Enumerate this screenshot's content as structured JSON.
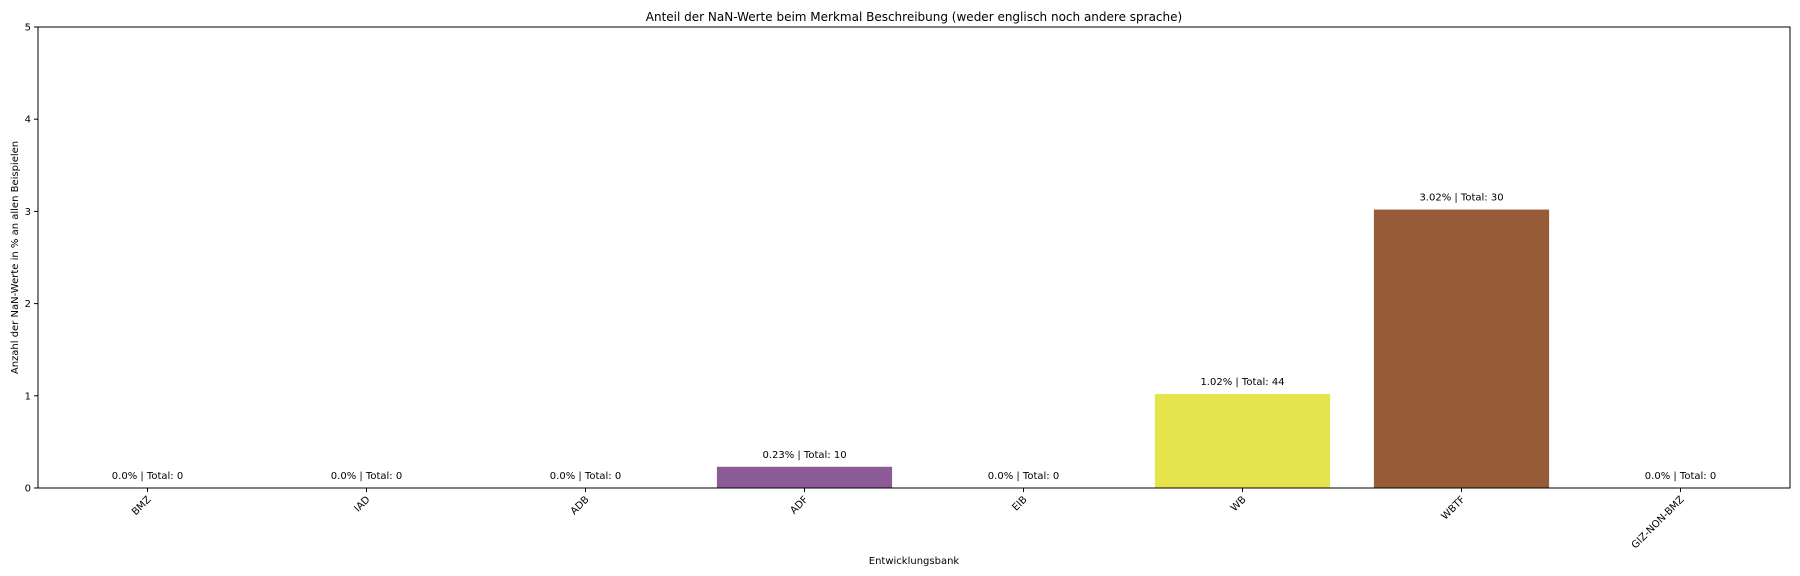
{
  "chart_data": {
    "type": "bar",
    "title": "Anteil der NaN-Werte beim Merkmal Beschreibung (weder englisch noch andere sprache)",
    "xlabel": "Entwicklungsbank",
    "ylabel": "Anzahl der NaN-Werte in % an allen Beispielen",
    "categories": [
      "BMZ",
      "IAD",
      "ADB",
      "ADF",
      "EIB",
      "WB",
      "WBTF",
      "GIZ-NON-BMZ"
    ],
    "values": [
      0.0,
      0.0,
      0.0,
      0.23,
      0.0,
      1.02,
      3.02,
      0.0
    ],
    "data_labels": [
      "0.0% | Total: 0",
      "0.0% | Total: 0",
      "0.0% | Total: 0",
      "0.23% | Total: 10",
      "0.0% | Total: 0",
      "1.02% | Total: 44",
      "3.02% | Total: 30",
      "0.0% | Total: 0"
    ],
    "colors": [
      "#1f77b4",
      "#ff7f0e",
      "#2ca02c",
      "#8c5a96",
      "#d62728",
      "#e6e44d",
      "#975b37",
      "#7f7f7f"
    ],
    "ylim": [
      0,
      5
    ],
    "yticks": [
      0,
      1,
      2,
      3,
      4,
      5
    ],
    "ytick_labels": [
      "0",
      "1",
      "2",
      "3",
      "4",
      "5"
    ],
    "grid": false,
    "legend": false,
    "xtick_rotation": 45
  }
}
